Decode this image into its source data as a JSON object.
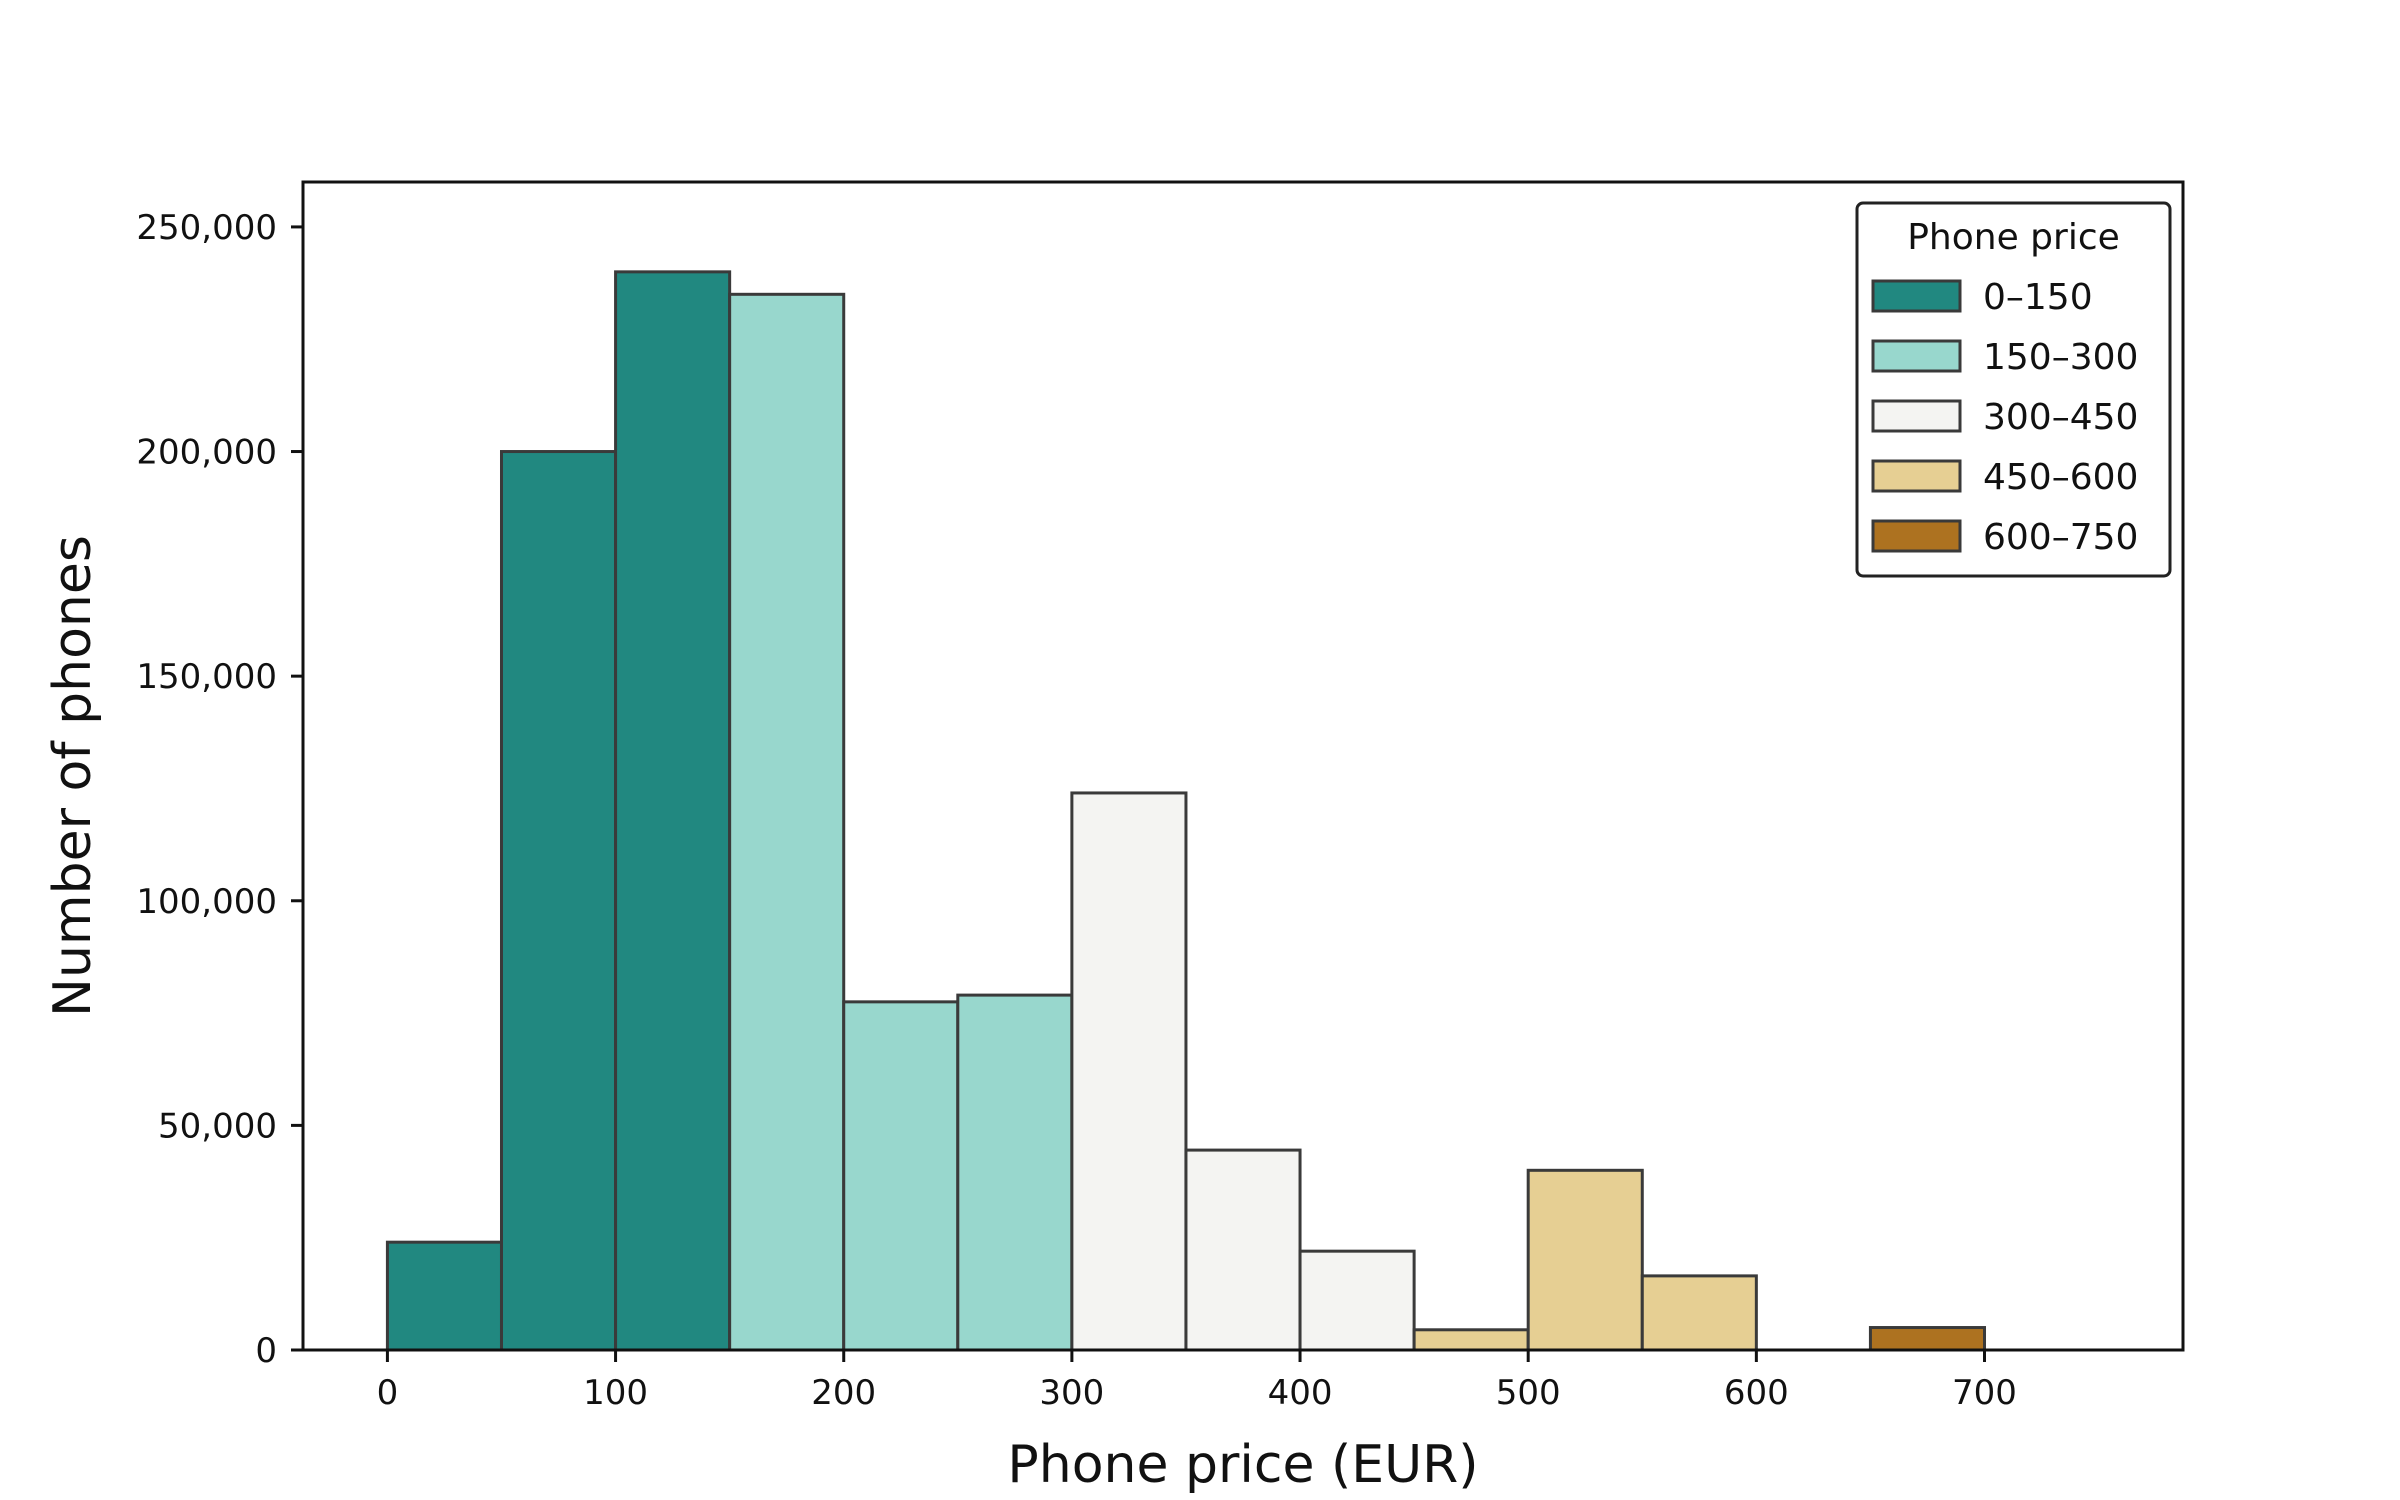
{
  "chart_data": {
    "type": "bar",
    "title": "",
    "xlabel": "Phone price (EUR)",
    "ylabel": "Number of phones",
    "xlim": [
      -37,
      787
    ],
    "ylim": [
      0,
      260000
    ],
    "grid": false,
    "x_ticks": [
      0,
      100,
      200,
      300,
      400,
      500,
      600,
      700
    ],
    "x_tick_labels": [
      "0",
      "100",
      "200",
      "300",
      "400",
      "500",
      "600",
      "700"
    ],
    "y_ticks": [
      0,
      50000,
      100000,
      150000,
      200000,
      250000
    ],
    "y_tick_labels": [
      "0",
      "50,000",
      "100,000",
      "150,000",
      "200,000",
      "250,000"
    ],
    "bin_width": 50,
    "bins": [
      {
        "x0": 0,
        "x1": 50,
        "value": 24000,
        "group": 0
      },
      {
        "x0": 50,
        "x1": 100,
        "value": 200000,
        "group": 0
      },
      {
        "x0": 100,
        "x1": 150,
        "value": 240000,
        "group": 0
      },
      {
        "x0": 150,
        "x1": 200,
        "value": 235000,
        "group": 1
      },
      {
        "x0": 200,
        "x1": 250,
        "value": 77500,
        "group": 1
      },
      {
        "x0": 250,
        "x1": 300,
        "value": 79000,
        "group": 1
      },
      {
        "x0": 300,
        "x1": 350,
        "value": 124000,
        "group": 2
      },
      {
        "x0": 350,
        "x1": 400,
        "value": 44500,
        "group": 2
      },
      {
        "x0": 400,
        "x1": 450,
        "value": 22000,
        "group": 2
      },
      {
        "x0": 450,
        "x1": 500,
        "value": 4500,
        "group": 3
      },
      {
        "x0": 500,
        "x1": 550,
        "value": 40000,
        "group": 3
      },
      {
        "x0": 550,
        "x1": 600,
        "value": 16500,
        "group": 3
      },
      {
        "x0": 600,
        "x1": 650,
        "value": 0,
        "group": 4
      },
      {
        "x0": 650,
        "x1": 700,
        "value": 5000,
        "group": 4
      },
      {
        "x0": 700,
        "x1": 750,
        "value": 0,
        "group": 4
      }
    ],
    "legend": {
      "title": "Phone price",
      "placement": "top-right",
      "entries": [
        {
          "label": "0–150",
          "color": "#218880"
        },
        {
          "label": "150–300",
          "color": "#98d7cd"
        },
        {
          "label": "300–450",
          "color": "#f4f4f2"
        },
        {
          "label": "450–600",
          "color": "#e6cf93"
        },
        {
          "label": "600–750",
          "color": "#ad7220"
        }
      ]
    },
    "edge_color": "#3a3a3a"
  }
}
